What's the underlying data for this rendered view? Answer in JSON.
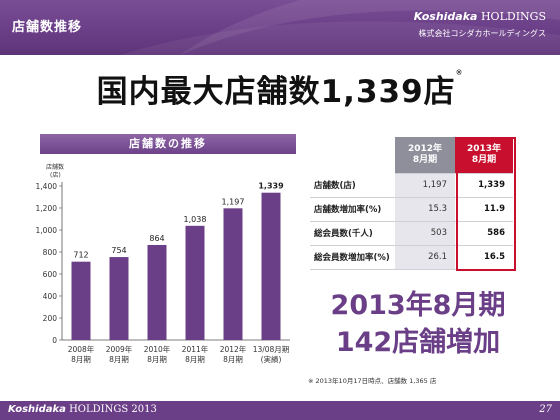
{
  "header": {
    "title": "店舗数推移",
    "brand_en_italic": "Koshidaka",
    "brand_en_rest": " HOLDINGS",
    "brand_jp": "株式会社コシダカホールディングス",
    "accent_color": "#6b3f87"
  },
  "headline": {
    "text": "国内最大店舗数1,339店",
    "mark": "※"
  },
  "chart_panel": {
    "title": "店舗数の推移"
  },
  "chart_data": {
    "type": "bar",
    "title": "店舗数の推移",
    "ylabel_line1": "店舗数",
    "ylabel_line2": "(店)",
    "ylim": [
      0,
      1400
    ],
    "yticks": [
      "0",
      "200",
      "400",
      "600",
      "800",
      "1,000",
      "1,200",
      "1,400"
    ],
    "ytick_values": [
      0,
      200,
      400,
      600,
      800,
      1000,
      1200,
      1400
    ],
    "categories": [
      {
        "line1": "2008年",
        "line2": "8月期"
      },
      {
        "line1": "2009年",
        "line2": "8月期"
      },
      {
        "line1": "2010年",
        "line2": "8月期"
      },
      {
        "line1": "2011年",
        "line2": "8月期"
      },
      {
        "line1": "2012年",
        "line2": "8月期"
      },
      {
        "line1": "13/08月期",
        "line2": "(実績)"
      }
    ],
    "values": [
      712,
      754,
      864,
      1038,
      1197,
      1339
    ],
    "labels": [
      "712",
      "754",
      "864",
      "1,038",
      "1,197",
      "1,339"
    ],
    "bar_color": "#6b3f87",
    "grid": false,
    "legend": "none"
  },
  "table": {
    "col_2012_line1": "2012年",
    "col_2012_line2": "8月期",
    "col_2013_line1": "2013年",
    "col_2013_line2": "8月期",
    "rows": [
      {
        "label": "店舗数(店)",
        "v2012": "1,197",
        "v2013": "1,339"
      },
      {
        "label": "店舗数増加率(%)",
        "v2012": "15.3",
        "v2013": "11.9"
      },
      {
        "label": "総会員数(千人)",
        "v2012": "503",
        "v2013": "586"
      },
      {
        "label": "総会員数増加率(%)",
        "v2012": "26.1",
        "v2013": "16.5"
      }
    ],
    "highlight_color": "#c8102e"
  },
  "highlight": {
    "period": "2013年8月期",
    "increase": "142店舗増加"
  },
  "footnote": "※ 2013年10月17日時点、店舗数 1,365 店",
  "footer": {
    "brand_italic": "Koshidaka",
    "brand_rest": " HOLDINGS 2013",
    "page": "27"
  }
}
